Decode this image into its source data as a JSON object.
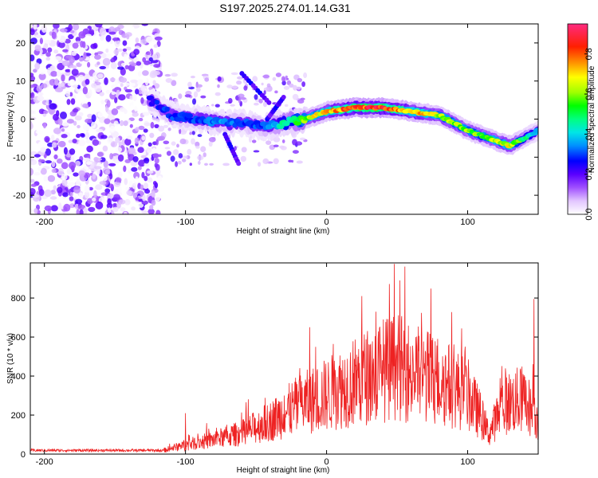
{
  "title": "S197.2025.274.01.14.G31",
  "chart_data": [
    {
      "type": "heatmap",
      "name": "spectrogram",
      "xlabel": "Height of straight line (km)",
      "ylabel": "Frequency (Hz)",
      "xlim": [
        -210,
        150
      ],
      "ylim": [
        -25,
        25
      ],
      "xticks": [
        -200,
        -100,
        0,
        100
      ],
      "yticks": [
        -20,
        -10,
        0,
        10,
        20
      ],
      "colorbar": {
        "label": "Normalized spectral amplitude",
        "range": [
          0,
          0.95
        ],
        "ticks": [
          0.0,
          0.2,
          0.4,
          0.6,
          0.8
        ]
      },
      "ridge": {
        "x": [
          -125,
          -110,
          -90,
          -75,
          -60,
          -45,
          -30,
          -15,
          0,
          20,
          40,
          60,
          80,
          100,
          115,
          130,
          140,
          150
        ],
        "freq": [
          5,
          1,
          0,
          -1,
          -1,
          -2,
          -1,
          0,
          2,
          3,
          3,
          2,
          1,
          -3,
          -5,
          -7,
          -5,
          -3
        ],
        "amplitude": [
          0.25,
          0.3,
          0.3,
          0.35,
          0.3,
          0.3,
          0.45,
          0.6,
          0.75,
          0.85,
          0.85,
          0.75,
          0.65,
          0.6,
          0.6,
          0.7,
          0.5,
          0.35
        ]
      }
    },
    {
      "type": "line",
      "name": "snr",
      "xlabel": "Height of straight line (km)",
      "ylabel": "SNR (10 * v/v)",
      "xlim": [
        -210,
        150
      ],
      "ylim": [
        0,
        980
      ],
      "xticks": [
        -200,
        -100,
        0,
        100
      ],
      "yticks": [
        0,
        200,
        400,
        600,
        800
      ],
      "color": "#ee2222",
      "envelope": {
        "x": [
          -210,
          -130,
          -115,
          -100,
          -80,
          -60,
          -40,
          -20,
          0,
          20,
          40,
          50,
          60,
          80,
          100,
          110,
          115,
          125,
          140,
          150
        ],
        "y": [
          15,
          15,
          30,
          70,
          110,
          160,
          250,
          370,
          450,
          550,
          640,
          660,
          620,
          560,
          450,
          280,
          150,
          380,
          420,
          250
        ]
      },
      "peaks": {
        "x": [
          -100,
          -30,
          -12,
          25,
          48,
          52,
          147
        ],
        "y": [
          210,
          300,
          650,
          810,
          975,
          890,
          795
        ]
      }
    }
  ]
}
